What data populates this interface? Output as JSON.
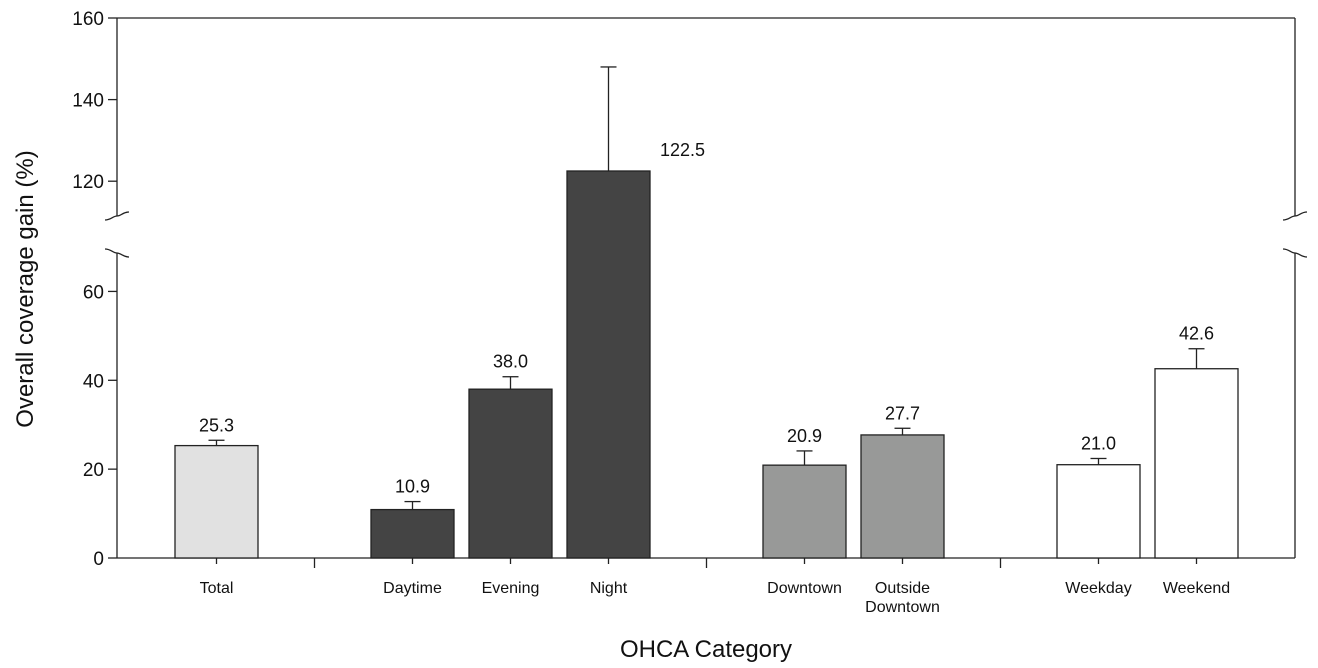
{
  "chart_data": {
    "type": "bar",
    "title": "",
    "xlabel": "OHCA Category",
    "ylabel": "Overall coverage gain (%)",
    "ylim": [
      0,
      160
    ],
    "axis_break": [
      70,
      110
    ],
    "yticks": [
      "0",
      "20",
      "40",
      "60",
      "120",
      "140",
      "160"
    ],
    "grid": false,
    "groups": [
      {
        "bars": [
          {
            "label": [
              "Total"
            ],
            "value": 25.3,
            "error": 1.2,
            "value_label": "25.3",
            "color": "#e1e1e1"
          }
        ]
      },
      {
        "bars": [
          {
            "label": [
              "Daytime"
            ],
            "value": 10.9,
            "error": 1.8,
            "value_label": "10.9",
            "color": "#444444"
          },
          {
            "label": [
              "Evening"
            ],
            "value": 38.0,
            "error": 2.8,
            "value_label": "38.0",
            "color": "#444444"
          },
          {
            "label": [
              "Night"
            ],
            "value": 122.5,
            "error": 25.5,
            "value_label": "122.5",
            "color": "#444444"
          }
        ]
      },
      {
        "bars": [
          {
            "label": [
              "Downtown"
            ],
            "value": 20.9,
            "error": 3.2,
            "value_label": "20.9",
            "color": "#989998"
          },
          {
            "label": [
              "Outside",
              "Downtown"
            ],
            "value": 27.7,
            "error": 1.5,
            "value_label": "27.7",
            "color": "#989998"
          }
        ]
      },
      {
        "bars": [
          {
            "label": [
              "Weekday"
            ],
            "value": 21.0,
            "error": 1.4,
            "value_label": "21.0",
            "color": "#ffffff"
          },
          {
            "label": [
              "Weekend"
            ],
            "value": 42.6,
            "error": 4.5,
            "value_label": "42.6",
            "color": "#ffffff"
          }
        ]
      }
    ]
  }
}
